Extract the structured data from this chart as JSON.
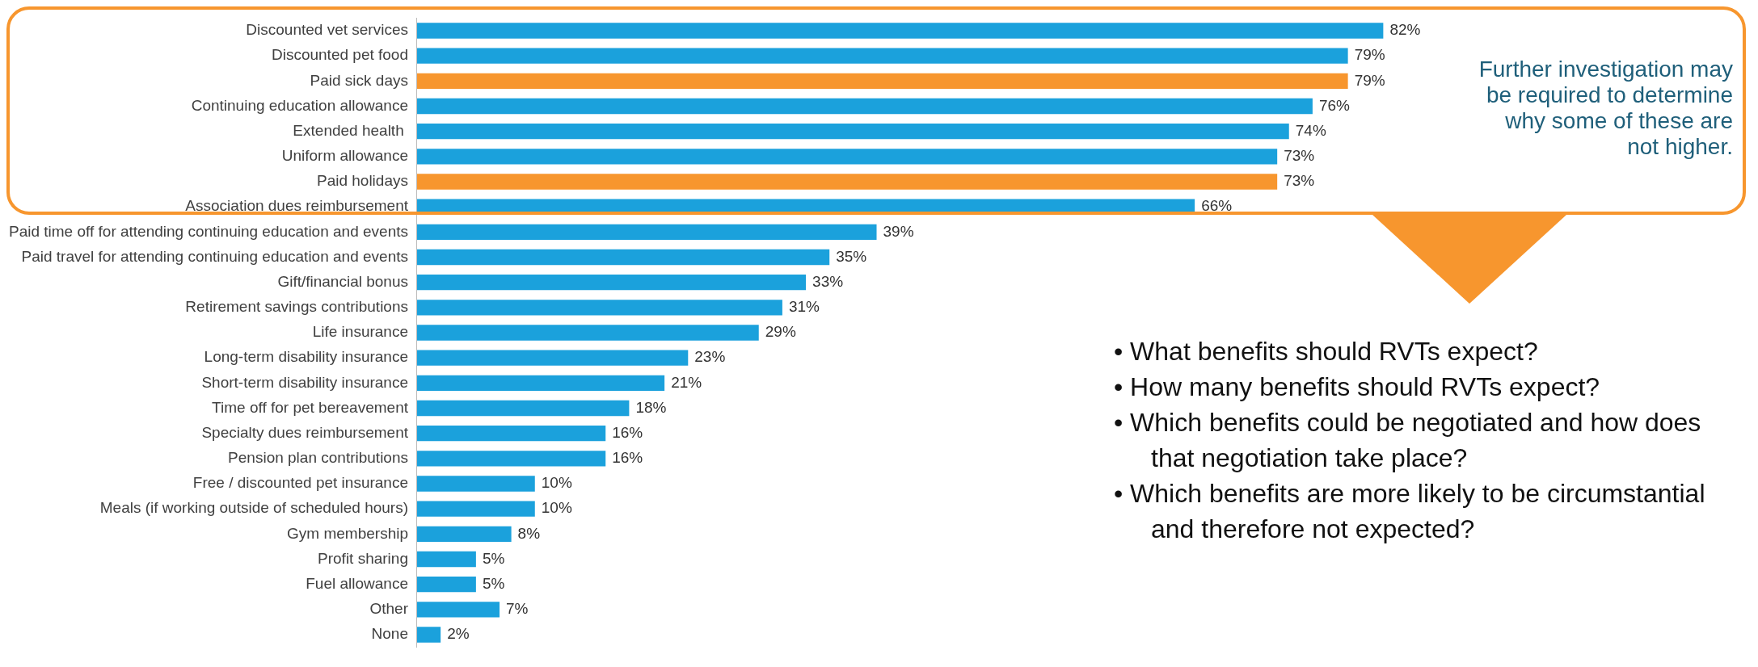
{
  "chart_data": {
    "type": "bar",
    "orientation": "horizontal",
    "tick_labels": "y",
    "legend": false,
    "categories": [
      "Discounted vet services",
      "Discounted pet food",
      "Paid sick days",
      "Continuing education allowance",
      "Extended health ",
      "Uniform allowance",
      "Paid holidays",
      "Association dues reimbursement",
      "Paid time off for attending continuing education and events",
      "Paid travel for attending continuing education and events",
      "Gift/financial bonus",
      "Retirement savings contributions",
      "Life insurance",
      "Long-term disability insurance",
      "Short-term disability insurance",
      "Time off for pet bereavement",
      "Specialty dues reimbursement",
      "Pension plan contributions",
      "Free / discounted pet insurance",
      "Meals (if working outside of scheduled hours)",
      "Gym membership",
      "Profit sharing",
      "Fuel allowance",
      "Other",
      "None"
    ],
    "values": [
      82,
      79,
      79,
      76,
      74,
      73,
      73,
      66,
      39,
      35,
      33,
      31,
      29,
      23,
      21,
      18,
      16,
      16,
      10,
      10,
      8,
      5,
      5,
      7,
      2
    ],
    "value_labels": [
      "82%",
      "79%",
      "79%",
      "76%",
      "74%",
      "73%",
      "73%",
      "66%",
      "39%",
      "35%",
      "33%",
      "31%",
      "29%",
      "23%",
      "21%",
      "18%",
      "16%",
      "16%",
      "10%",
      "10%",
      "8%",
      "5%",
      "5%",
      "7%",
      "2%"
    ],
    "colors": [
      "#1ba1dc",
      "#1ba1dc",
      "#f7962e",
      "#1ba1dc",
      "#1ba1dc",
      "#1ba1dc",
      "#f7962e",
      "#1ba1dc",
      "#1ba1dc",
      "#1ba1dc",
      "#1ba1dc",
      "#1ba1dc",
      "#1ba1dc",
      "#1ba1dc",
      "#1ba1dc",
      "#1ba1dc",
      "#1ba1dc",
      "#1ba1dc",
      "#1ba1dc",
      "#1ba1dc",
      "#1ba1dc",
      "#1ba1dc",
      "#1ba1dc",
      "#1ba1dc",
      "#1ba1dc"
    ],
    "annotations": [
      "Further investigation may be required to determine why some of these are not higher.",
      "• What benefits should RVTs expect?",
      "• How many benefits should RVTs expect?",
      "• Which benefits could be negotiated and how does that negotiation take place?",
      "• Which benefits are more likely to be circumstantial and therefore not expected?"
    ]
  }
}
